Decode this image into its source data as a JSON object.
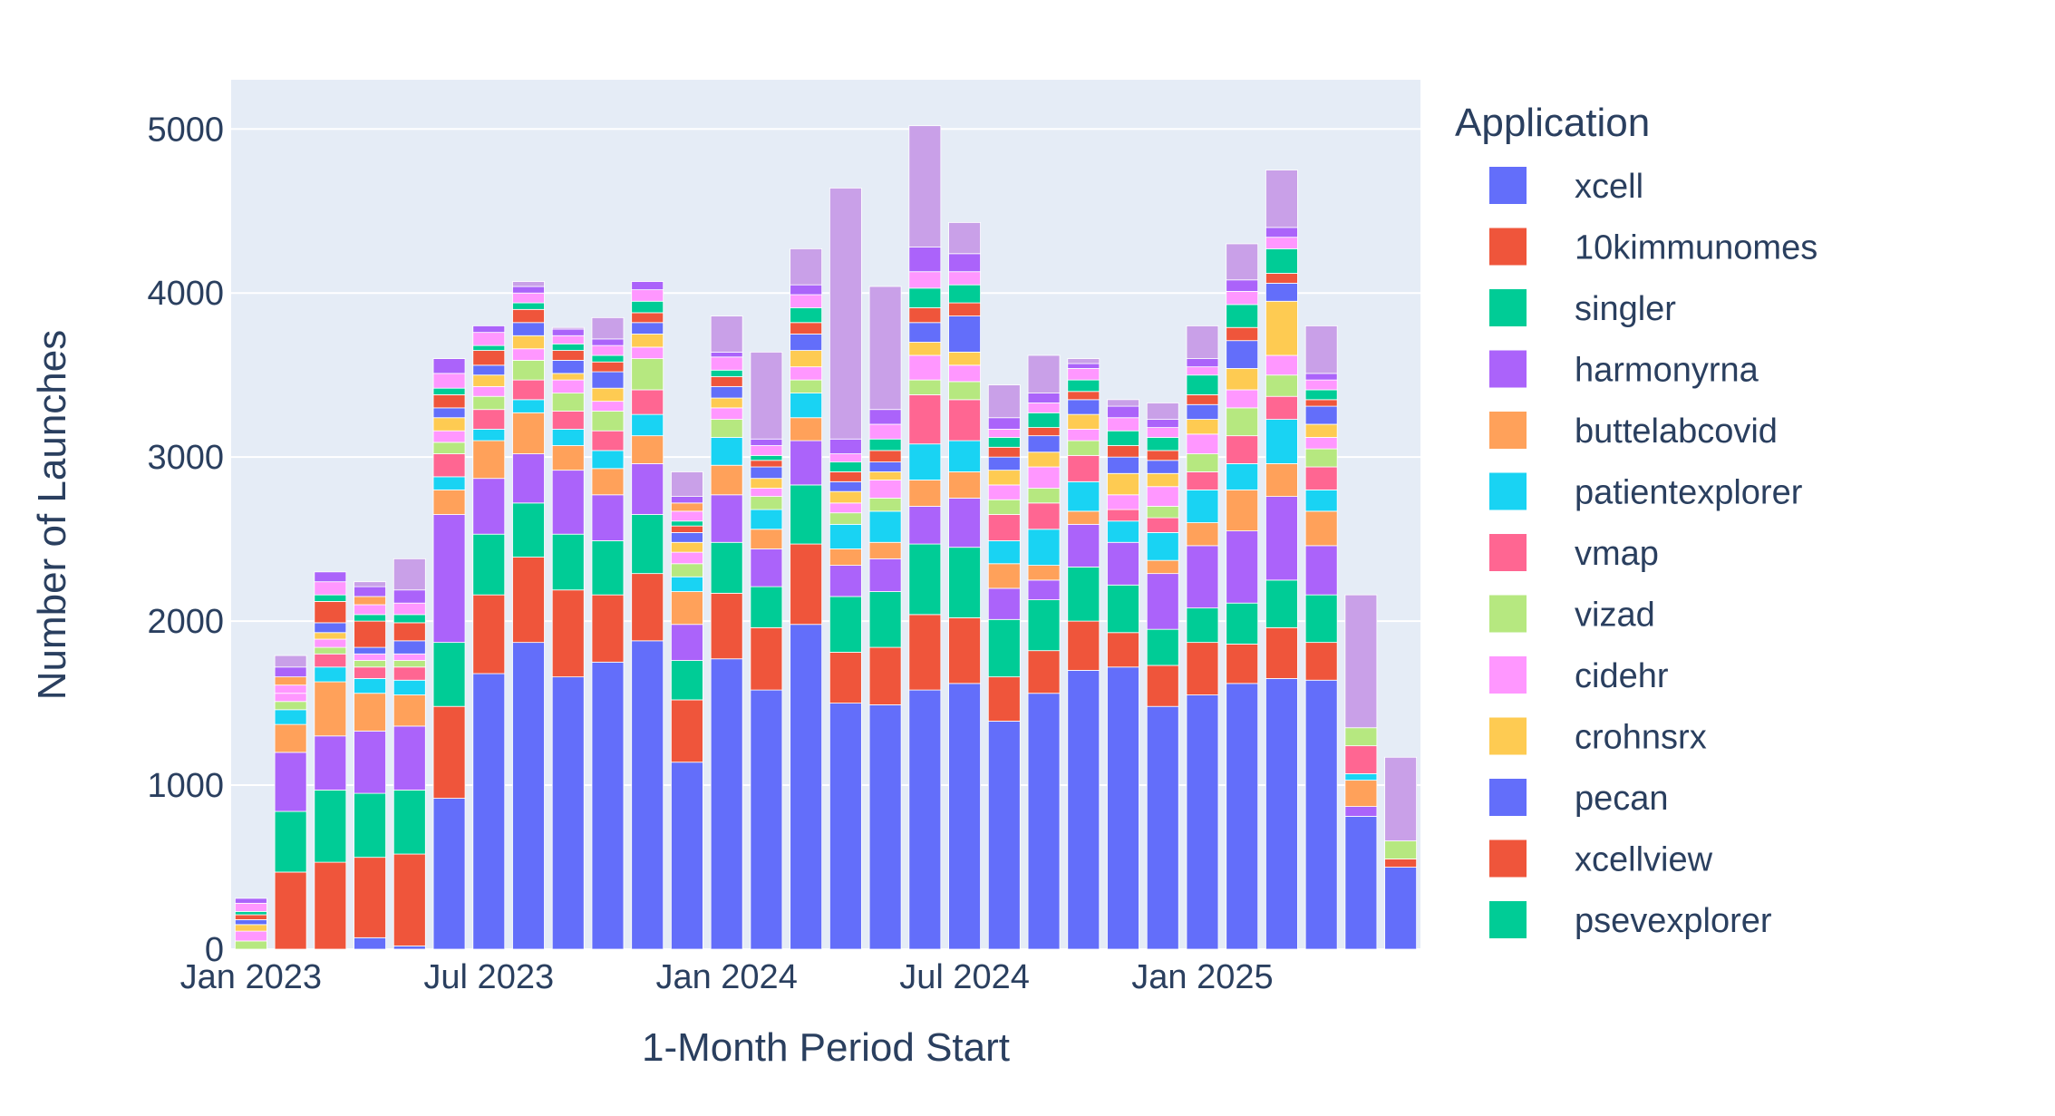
{
  "chart_data": {
    "type": "bar",
    "barmode": "stack",
    "title": "",
    "xlabel": "1-Month Period Start",
    "ylabel": "Number of Launches",
    "ylim": [
      0,
      5300
    ],
    "yticks": [
      0,
      1000,
      2000,
      3000,
      4000,
      5000
    ],
    "x_tick_labels": [
      {
        "label": "Jan 2023",
        "month_index": 0
      },
      {
        "label": "Jul 2023",
        "month_index": 6
      },
      {
        "label": "Jan 2024",
        "month_index": 12
      },
      {
        "label": "Jul 2024",
        "month_index": 18
      },
      {
        "label": "Jan 2025",
        "month_index": 24
      }
    ],
    "grid": true,
    "legend_title": "Application",
    "legend_position": "right",
    "categories": [
      "2023-01",
      "2023-02",
      "2023-03",
      "2023-04",
      "2023-05",
      "2023-06",
      "2023-07",
      "2023-08",
      "2023-09",
      "2023-10",
      "2023-11",
      "2023-12",
      "2024-01",
      "2024-02",
      "2024-03",
      "2024-04",
      "2024-05",
      "2024-06",
      "2024-07",
      "2024-08",
      "2024-09",
      "2024-10",
      "2024-11",
      "2024-12",
      "2025-01",
      "2025-02",
      "2025-03",
      "2025-04",
      "2025-05",
      "2025-06"
    ],
    "series": [
      {
        "name": "xcell",
        "color": "#636efa",
        "values": [
          0,
          0,
          0,
          70,
          20,
          920,
          1680,
          1870,
          1660,
          1750,
          1880,
          1140,
          1770,
          1580,
          1980,
          1500,
          1490,
          1580,
          1620,
          1390,
          1560,
          1700,
          1720,
          1480,
          1550,
          1620,
          1650,
          1640,
          810,
          500
        ]
      },
      {
        "name": "10kimmunomes",
        "color": "#ef553b",
        "values": [
          0,
          470,
          530,
          490,
          560,
          560,
          480,
          520,
          530,
          410,
          410,
          380,
          400,
          380,
          490,
          310,
          350,
          460,
          400,
          270,
          260,
          300,
          210,
          250,
          320,
          240,
          310,
          230,
          0,
          50
        ]
      },
      {
        "name": "singler",
        "color": "#00cc96",
        "values": [
          0,
          370,
          440,
          390,
          390,
          390,
          370,
          330,
          340,
          330,
          360,
          240,
          310,
          250,
          360,
          340,
          340,
          430,
          430,
          350,
          310,
          330,
          290,
          220,
          210,
          250,
          290,
          290,
          0,
          0
        ]
      },
      {
        "name": "harmonyrna",
        "color": "#ab63fa",
        "values": [
          0,
          360,
          330,
          380,
          390,
          780,
          340,
          300,
          390,
          280,
          310,
          220,
          290,
          230,
          270,
          190,
          200,
          230,
          300,
          190,
          120,
          260,
          260,
          340,
          380,
          440,
          510,
          300,
          60,
          0
        ]
      },
      {
        "name": "buttelabcovid",
        "color": "#ffa15a",
        "values": [
          0,
          170,
          330,
          230,
          190,
          150,
          230,
          250,
          150,
          160,
          170,
          200,
          180,
          120,
          140,
          100,
          100,
          160,
          160,
          150,
          90,
          80,
          0,
          80,
          140,
          250,
          200,
          210,
          160,
          0
        ]
      },
      {
        "name": "patientexplorer",
        "color": "#19d3f3",
        "values": [
          0,
          90,
          90,
          90,
          90,
          80,
          70,
          80,
          100,
          110,
          130,
          90,
          170,
          120,
          150,
          150,
          190,
          220,
          190,
          140,
          220,
          180,
          130,
          170,
          200,
          160,
          270,
          130,
          40,
          0
        ]
      },
      {
        "name": "vmap",
        "color": "#ff6692",
        "values": [
          0,
          0,
          80,
          70,
          80,
          140,
          120,
          120,
          110,
          120,
          150,
          0,
          0,
          0,
          0,
          0,
          0,
          300,
          250,
          160,
          160,
          160,
          70,
          90,
          110,
          170,
          140,
          140,
          170,
          0
        ]
      },
      {
        "name": "vizad",
        "color": "#b6e880",
        "values": [
          50,
          50,
          40,
          40,
          40,
          70,
          80,
          120,
          110,
          120,
          190,
          80,
          110,
          80,
          80,
          70,
          80,
          90,
          110,
          90,
          90,
          90,
          0,
          70,
          110,
          170,
          130,
          110,
          110,
          110
        ]
      },
      {
        "name": "cidehr",
        "color": "#ff97ff",
        "values": [
          60,
          50,
          50,
          40,
          40,
          70,
          60,
          70,
          80,
          60,
          70,
          70,
          70,
          50,
          80,
          60,
          110,
          150,
          100,
          90,
          130,
          70,
          90,
          120,
          120,
          110,
          120,
          70,
          0,
          0
        ]
      },
      {
        "name": "crohnsrx",
        "color": "#fecb52",
        "values": [
          40,
          0,
          40,
          0,
          0,
          80,
          70,
          80,
          40,
          80,
          80,
          60,
          60,
          60,
          100,
          70,
          50,
          80,
          80,
          90,
          90,
          90,
          130,
          80,
          90,
          130,
          330,
          80,
          0,
          0
        ]
      },
      {
        "name": "pecan",
        "color": "#636efa",
        "values": [
          30,
          0,
          60,
          40,
          80,
          60,
          60,
          80,
          80,
          100,
          70,
          60,
          70,
          70,
          100,
          60,
          60,
          120,
          220,
          80,
          100,
          90,
          100,
          80,
          90,
          170,
          110,
          110,
          0,
          0
        ]
      },
      {
        "name": "xcellview",
        "color": "#ef553b",
        "values": [
          30,
          0,
          130,
          160,
          110,
          80,
          90,
          80,
          60,
          60,
          60,
          40,
          60,
          40,
          70,
          60,
          70,
          90,
          80,
          60,
          50,
          50,
          70,
          60,
          60,
          80,
          60,
          40,
          0,
          0
        ]
      },
      {
        "name": "psevexplorer",
        "color": "#00cc96",
        "values": [
          20,
          0,
          40,
          40,
          50,
          40,
          30,
          40,
          40,
          40,
          70,
          30,
          40,
          30,
          90,
          60,
          70,
          120,
          110,
          60,
          90,
          70,
          90,
          80,
          120,
          140,
          150,
          60,
          0,
          0
        ]
      }
    ],
    "others_segments": [
      [
        50,
        50,
        80,
        60,
        70,
        90,
        80,
        60,
        50,
        60,
        70,
        60,
        80,
        60,
        80,
        50,
        90,
        100,
        80,
        50,
        60,
        70,
        80,
        60,
        50,
        80,
        70,
        60,
        0,
        0
      ],
      [
        0,
        50,
        0,
        50,
        0,
        0,
        0,
        0,
        0,
        0,
        0,
        50,
        0,
        0,
        0,
        0,
        0,
        0,
        0,
        0,
        0,
        0,
        0,
        0,
        0,
        0,
        0,
        0,
        0,
        0
      ],
      [
        30,
        60,
        60,
        60,
        80,
        90,
        40,
        40,
        40,
        40,
        50,
        40,
        30,
        40,
        60,
        90,
        90,
        150,
        110,
        70,
        60,
        30,
        70,
        50,
        50,
        70,
        60,
        40,
        0,
        0
      ]
    ],
    "others_colors": [
      "#ff97ff",
      "#ffa15a",
      "#ab63fa"
    ],
    "total_overrides": [
      280,
      1790,
      2240,
      2240,
      2380,
      3260,
      3730,
      4070,
      3790,
      3850,
      4060,
      2910,
      3860,
      3640,
      4270,
      4640,
      4040,
      5020,
      4430,
      3440,
      3620,
      3600,
      3350,
      3330,
      3800,
      4300,
      4750,
      3800,
      2160,
      1170
    ]
  }
}
